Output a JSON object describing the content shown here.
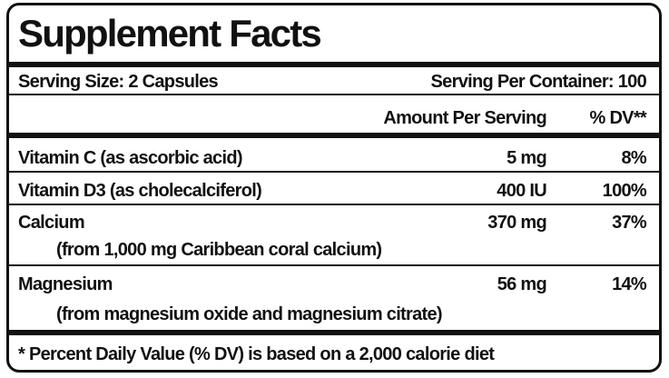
{
  "title": "Supplement Facts",
  "serving": {
    "size": "Serving Size: 2 Capsules",
    "per_container": "Serving Per Container: 100"
  },
  "header": {
    "amount": "Amount Per Serving",
    "dv": "% DV**"
  },
  "rows": [
    {
      "name": "Vitamin C (as ascorbic acid)",
      "amount": "5 mg",
      "dv": "8%"
    },
    {
      "name": "Vitamin D3 (as cholecalciferol)",
      "amount": "400 IU",
      "dv": "100%"
    },
    {
      "name": "Calcium",
      "source": "(from 1,000 mg Caribbean coral calcium)",
      "amount": "370 mg",
      "dv": "37%"
    },
    {
      "name": "Magnesium",
      "source": "(from magnesium oxide and magnesium citrate)",
      "amount": "56 mg",
      "dv": "14%"
    }
  ],
  "footnote": "* Percent Daily Value (% DV) is based on a 2,000 calorie diet"
}
